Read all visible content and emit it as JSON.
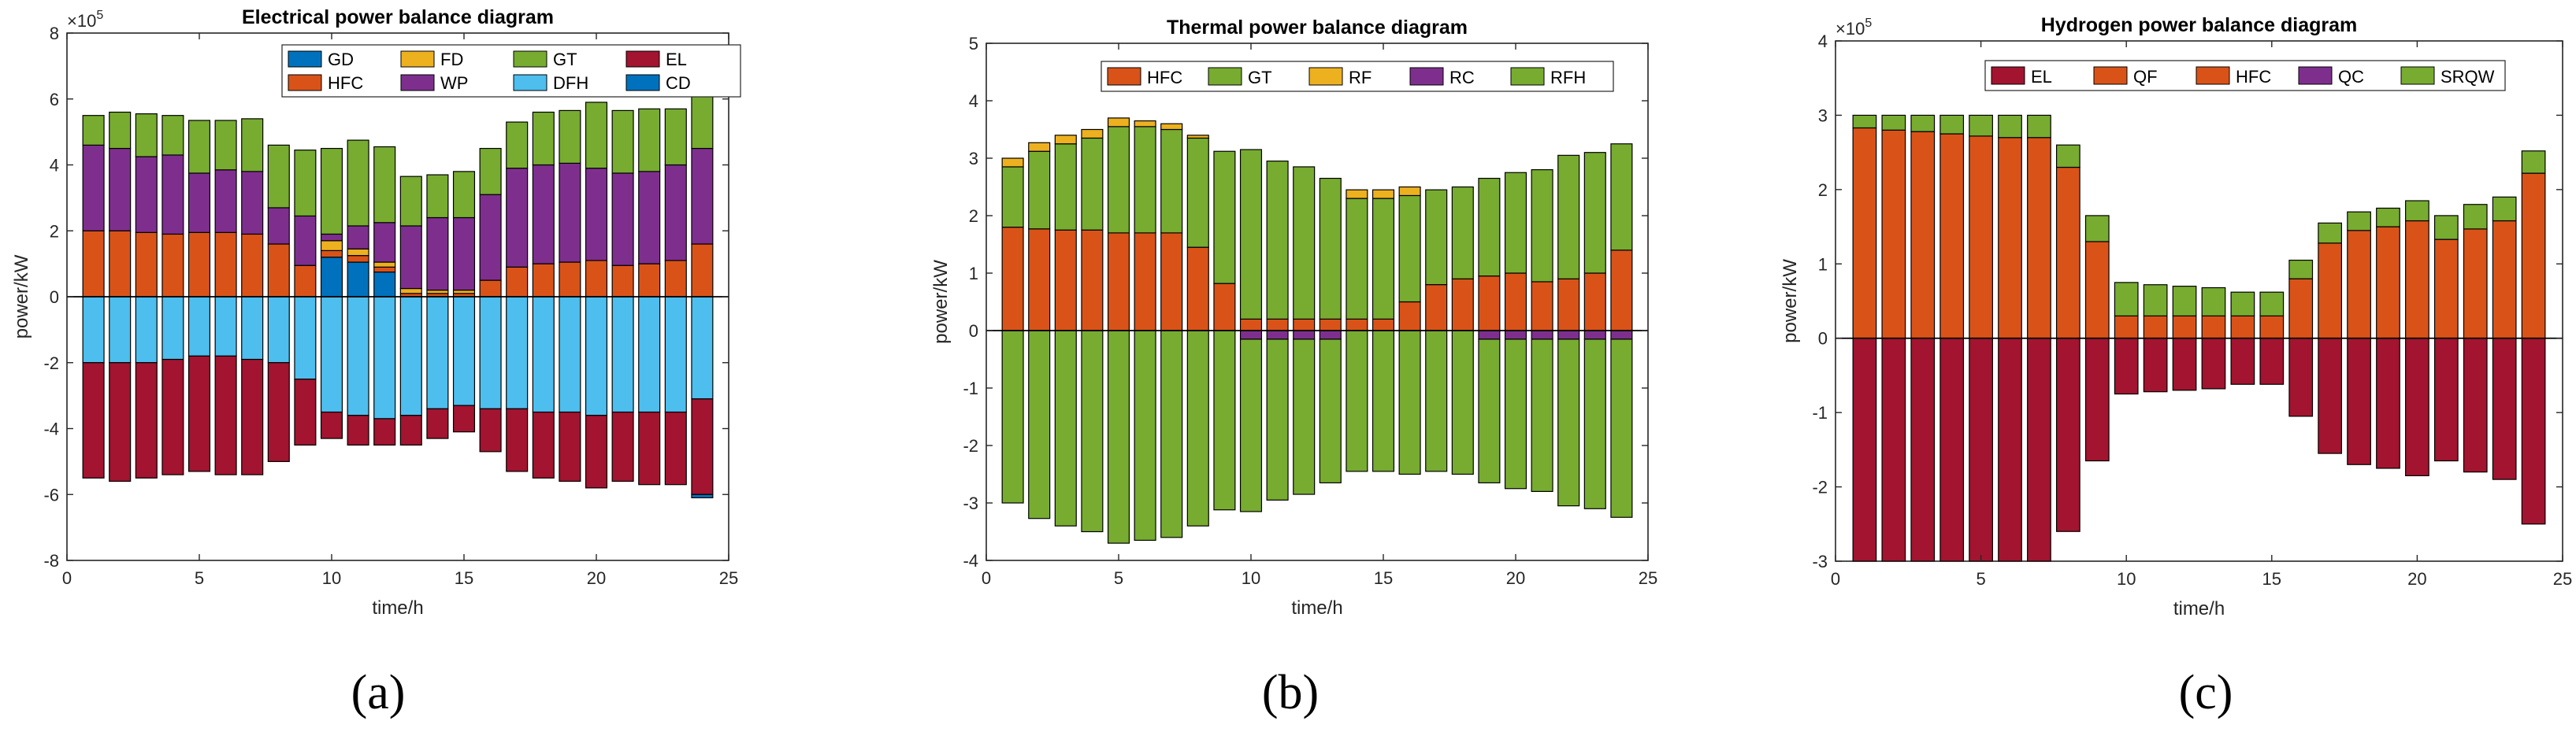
{
  "colors": {
    "GD": "#0072BD",
    "FD": "#EDB120",
    "GT": "#77AC30",
    "EL": "#A2142F",
    "HFC": "#D95319",
    "WP": "#7E2F8E",
    "DFH": "#4DBEEE",
    "CD": "#0072BD",
    "RF": "#EDB120",
    "RC": "#7E2F8E",
    "RFH": "#77AC30",
    "QF": "#D95319",
    "QC": "#7E2F8E",
    "SRQW": "#77AC30"
  },
  "panel_labels": [
    "(a)",
    "(b)",
    "(c)"
  ],
  "chart_data": [
    {
      "type": "bar",
      "stacked": true,
      "title": "Electrical power balance diagram",
      "xlabel": "time/h",
      "ylabel": "power/kW",
      "exponent_label": "×10",
      "exponent": "5",
      "xlim": [
        0,
        25
      ],
      "ylim": [
        -8,
        8
      ],
      "xticks": [
        "0",
        "5",
        "10",
        "15",
        "20",
        "25"
      ],
      "yticks": [
        "-8",
        "-6",
        "-4",
        "-2",
        "0",
        "2",
        "4",
        "6",
        "8"
      ],
      "legend": [
        "GD",
        "FD",
        "GT",
        "EL",
        "HFC",
        "WP",
        "DFH",
        "CD"
      ],
      "x": [
        1,
        2,
        3,
        4,
        5,
        6,
        7,
        8,
        9,
        10,
        11,
        12,
        13,
        14,
        15,
        16,
        17,
        18,
        19,
        20,
        21,
        22,
        23,
        24
      ],
      "series": [
        {
          "name": "GD",
          "values": [
            0,
            0,
            0,
            0,
            0,
            0,
            0,
            0,
            0,
            1.2,
            1.05,
            0.75,
            0,
            0,
            0,
            0,
            0,
            0,
            0,
            0,
            0,
            0,
            0,
            0
          ]
        },
        {
          "name": "HFC",
          "values": [
            2.0,
            2.0,
            1.95,
            1.9,
            1.95,
            1.95,
            1.9,
            1.6,
            0.95,
            0.2,
            0.2,
            0.15,
            0.1,
            0.1,
            0.1,
            0.5,
            0.9,
            1.0,
            1.05,
            1.1,
            0.95,
            1.0,
            1.1,
            1.6
          ]
        },
        {
          "name": "FD",
          "values": [
            0,
            0,
            0,
            0,
            0,
            0,
            0,
            0,
            0,
            0.3,
            0.2,
            0.15,
            0.15,
            0.1,
            0.1,
            0,
            0,
            0,
            0,
            0,
            0,
            0,
            0,
            0
          ]
        },
        {
          "name": "WP",
          "values": [
            2.6,
            2.5,
            2.3,
            2.4,
            1.8,
            1.9,
            1.9,
            1.1,
            1.5,
            0.2,
            0.7,
            1.2,
            1.9,
            2.2,
            2.2,
            2.6,
            3.0,
            3.0,
            3.0,
            2.8,
            2.8,
            2.8,
            2.9,
            2.9
          ]
        },
        {
          "name": "GT",
          "values": [
            0.9,
            1.1,
            1.3,
            1.2,
            1.6,
            1.5,
            1.6,
            1.9,
            2.0,
            2.6,
            2.6,
            2.3,
            1.5,
            1.3,
            1.4,
            1.4,
            1.4,
            1.6,
            1.6,
            2.0,
            1.9,
            1.9,
            1.7,
            1.6
          ]
        },
        {
          "name": "DFH",
          "values": [
            -2.0,
            -2.0,
            -2.0,
            -1.9,
            -1.8,
            -1.8,
            -1.9,
            -2.0,
            -2.5,
            -3.5,
            -3.6,
            -3.7,
            -3.6,
            -3.4,
            -3.3,
            -3.4,
            -3.4,
            -3.5,
            -3.5,
            -3.6,
            -3.5,
            -3.5,
            -3.5,
            -3.1
          ]
        },
        {
          "name": "EL",
          "values": [
            -3.5,
            -3.6,
            -3.5,
            -3.5,
            -3.5,
            -3.6,
            -3.5,
            -3.0,
            -2.0,
            -0.8,
            -0.9,
            -0.8,
            -0.9,
            -0.9,
            -0.8,
            -1.3,
            -1.9,
            -2.0,
            -2.1,
            -2.2,
            -2.1,
            -2.2,
            -2.2,
            -2.9
          ]
        },
        {
          "name": "CD",
          "values": [
            0,
            0,
            0,
            0,
            0,
            0,
            0,
            0,
            0,
            0,
            0,
            0,
            0,
            0,
            0,
            0,
            0,
            0,
            0,
            0,
            0,
            0,
            0,
            -0.1
          ]
        }
      ]
    },
    {
      "type": "bar",
      "stacked": true,
      "title": "Thermal power balance diagram",
      "xlabel": "time/h",
      "ylabel": "power/kW",
      "xlim": [
        0,
        25
      ],
      "ylim": [
        -4,
        5
      ],
      "xticks": [
        "0",
        "5",
        "10",
        "15",
        "20",
        "25"
      ],
      "yticks": [
        "-4",
        "-3",
        "-2",
        "-1",
        "0",
        "1",
        "2",
        "3",
        "4",
        "5"
      ],
      "legend": [
        "HFC",
        "GT",
        "RF",
        "RC",
        "RFH"
      ],
      "x": [
        1,
        2,
        3,
        4,
        5,
        6,
        7,
        8,
        9,
        10,
        11,
        12,
        13,
        14,
        15,
        16,
        17,
        18,
        19,
        20,
        21,
        22,
        23,
        24
      ],
      "series": [
        {
          "name": "HFC",
          "values": [
            1.8,
            1.77,
            1.75,
            1.75,
            1.7,
            1.7,
            1.7,
            1.45,
            0.82,
            0.2,
            0.2,
            0.2,
            0.2,
            0.2,
            0.2,
            0.5,
            0.8,
            0.9,
            0.95,
            1.0,
            0.85,
            0.9,
            1.0,
            1.4
          ]
        },
        {
          "name": "GT",
          "values": [
            1.05,
            1.35,
            1.5,
            1.6,
            1.85,
            1.85,
            1.8,
            1.9,
            2.3,
            2.95,
            2.75,
            2.65,
            2.45,
            2.1,
            2.1,
            1.85,
            1.65,
            1.6,
            1.7,
            1.75,
            1.95,
            2.15,
            2.1,
            1.85
          ]
        },
        {
          "name": "RF",
          "values": [
            0.15,
            0.15,
            0.15,
            0.15,
            0.15,
            0.1,
            0.1,
            0.05,
            0,
            0,
            0,
            0,
            0,
            0.15,
            0.15,
            0.15,
            0,
            0,
            0,
            0,
            0,
            0,
            0,
            0
          ]
        },
        {
          "name": "RC",
          "values": [
            0,
            0,
            0,
            0,
            0,
            0,
            0,
            0,
            0,
            -0.15,
            -0.15,
            -0.15,
            -0.15,
            0,
            0,
            0,
            0,
            0,
            -0.15,
            -0.15,
            -0.15,
            -0.15,
            -0.15,
            -0.15
          ]
        },
        {
          "name": "RFH",
          "values": [
            -3.0,
            -3.27,
            -3.4,
            -3.5,
            -3.7,
            -3.65,
            -3.6,
            -3.4,
            -3.12,
            -3.0,
            -2.8,
            -2.7,
            -2.5,
            -2.45,
            -2.45,
            -2.5,
            -2.45,
            -2.5,
            -2.5,
            -2.6,
            -2.65,
            -2.9,
            -2.95,
            -3.1
          ]
        }
      ]
    },
    {
      "type": "bar",
      "stacked": true,
      "title": "Hydrogen power balance diagram",
      "xlabel": "time/h",
      "ylabel": "power/kW",
      "exponent_label": "×10",
      "exponent": "5",
      "xlim": [
        0,
        25
      ],
      "ylim": [
        -3,
        4
      ],
      "xticks": [
        "0",
        "5",
        "10",
        "15",
        "20",
        "25"
      ],
      "yticks": [
        "-3",
        "-2",
        "-1",
        "0",
        "1",
        "2",
        "3",
        "4"
      ],
      "legend": [
        "EL",
        "QF",
        "HFC",
        "QC",
        "SRQW"
      ],
      "x": [
        1,
        2,
        3,
        4,
        5,
        6,
        7,
        8,
        9,
        10,
        11,
        12,
        13,
        14,
        15,
        16,
        17,
        18,
        19,
        20,
        21,
        22,
        23,
        24
      ],
      "series": [
        {
          "name": "EL",
          "values": [
            -3.0,
            -3.0,
            -3.0,
            -3.0,
            -3.0,
            -3.0,
            -3.0,
            -2.6,
            -1.65,
            -0.75,
            -0.72,
            -0.7,
            -0.68,
            -0.62,
            -0.62,
            -1.05,
            -1.55,
            -1.7,
            -1.75,
            -1.85,
            -1.65,
            -1.8,
            -1.9,
            -2.5
          ]
        },
        {
          "name": "QF",
          "values": [
            0,
            0,
            0,
            0,
            0,
            0,
            0,
            0,
            0,
            0,
            0,
            0,
            0,
            0,
            0,
            0,
            0,
            0,
            0,
            0,
            0,
            0,
            0,
            0
          ]
        },
        {
          "name": "HFC",
          "values": [
            2.83,
            2.8,
            2.78,
            2.75,
            2.72,
            2.7,
            2.7,
            2.3,
            1.3,
            0.3,
            0.3,
            0.3,
            0.3,
            0.3,
            0.3,
            0.8,
            1.28,
            1.45,
            1.5,
            1.58,
            1.33,
            1.47,
            1.58,
            2.22
          ]
        },
        {
          "name": "QC",
          "values": [
            0,
            0,
            0,
            0,
            0,
            0,
            0,
            0,
            0,
            0,
            0,
            0,
            0,
            0,
            0,
            0,
            0,
            0,
            0,
            0,
            0,
            0,
            0,
            0
          ]
        },
        {
          "name": "SRQW",
          "values": [
            0.17,
            0.2,
            0.22,
            0.25,
            0.28,
            0.3,
            0.3,
            0.3,
            0.35,
            0.45,
            0.42,
            0.4,
            0.38,
            0.32,
            0.32,
            0.25,
            0.27,
            0.25,
            0.25,
            0.27,
            0.32,
            0.33,
            0.32,
            0.3
          ]
        }
      ]
    }
  ]
}
